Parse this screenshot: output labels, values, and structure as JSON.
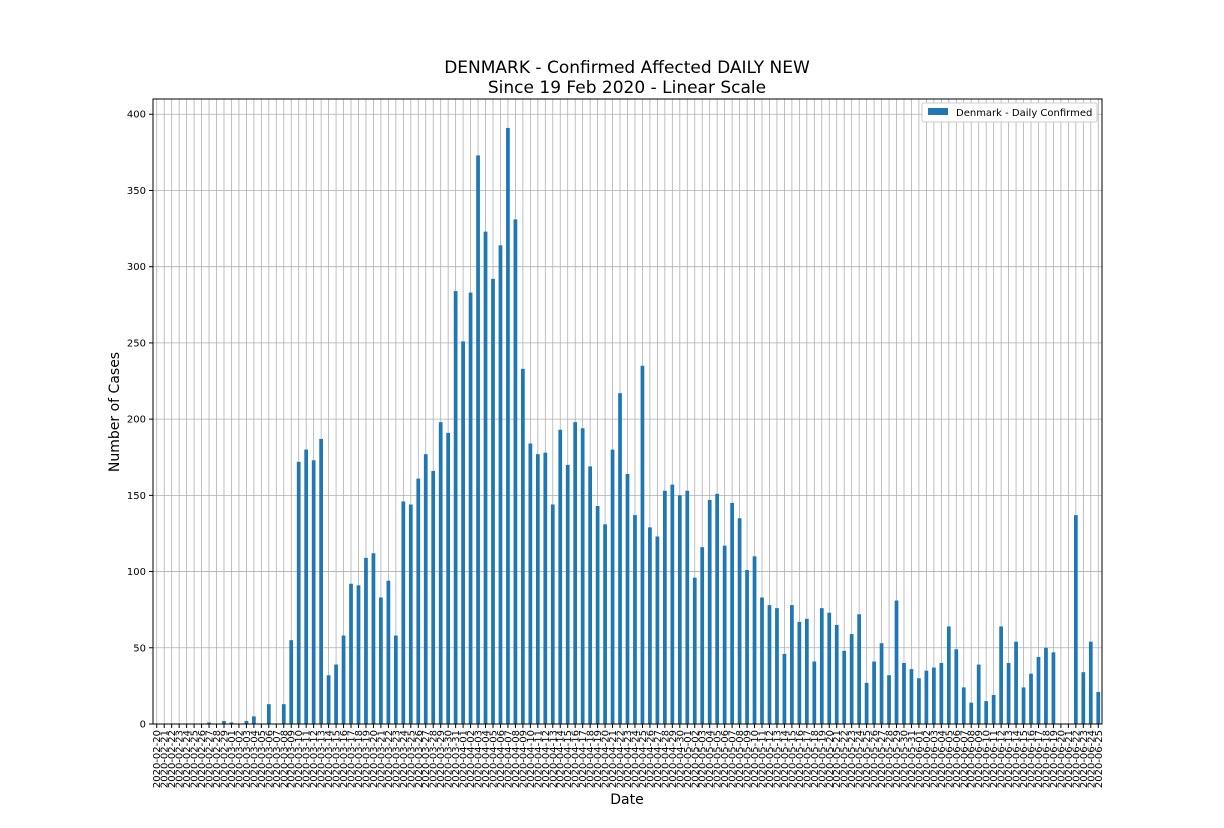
{
  "chart_data": {
    "type": "bar",
    "title": "DENMARK - Confirmed Affected DAILY NEW",
    "subtitle": "Since 19 Feb 2020 - Linear Scale",
    "xlabel": "Date",
    "ylabel": "Number of Cases",
    "ylim": [
      0,
      410
    ],
    "yticks": [
      0,
      50,
      100,
      150,
      200,
      250,
      300,
      350,
      400
    ],
    "grid": true,
    "legend_position": "top-right",
    "bar_color": "#1f77b4",
    "categories": [
      "2020-02-20",
      "2020-02-21",
      "2020-02-22",
      "2020-02-23",
      "2020-02-24",
      "2020-02-25",
      "2020-02-26",
      "2020-02-27",
      "2020-02-28",
      "2020-02-29",
      "2020-03-01",
      "2020-03-02",
      "2020-03-03",
      "2020-03-04",
      "2020-03-05",
      "2020-03-06",
      "2020-03-07",
      "2020-03-08",
      "2020-03-09",
      "2020-03-10",
      "2020-03-11",
      "2020-03-12",
      "2020-03-13",
      "2020-03-14",
      "2020-03-15",
      "2020-03-16",
      "2020-03-17",
      "2020-03-18",
      "2020-03-19",
      "2020-03-20",
      "2020-03-21",
      "2020-03-22",
      "2020-03-23",
      "2020-03-24",
      "2020-03-25",
      "2020-03-26",
      "2020-03-27",
      "2020-03-28",
      "2020-03-29",
      "2020-03-30",
      "2020-03-31",
      "2020-04-01",
      "2020-04-02",
      "2020-04-03",
      "2020-04-04",
      "2020-04-05",
      "2020-04-06",
      "2020-04-07",
      "2020-04-08",
      "2020-04-09",
      "2020-04-10",
      "2020-04-11",
      "2020-04-12",
      "2020-04-13",
      "2020-04-14",
      "2020-04-15",
      "2020-04-16",
      "2020-04-17",
      "2020-04-18",
      "2020-04-19",
      "2020-04-20",
      "2020-04-21",
      "2020-04-22",
      "2020-04-23",
      "2020-04-24",
      "2020-04-25",
      "2020-04-26",
      "2020-04-27",
      "2020-04-28",
      "2020-04-29",
      "2020-04-30",
      "2020-05-01",
      "2020-05-02",
      "2020-05-03",
      "2020-05-04",
      "2020-05-05",
      "2020-05-06",
      "2020-05-07",
      "2020-05-08",
      "2020-05-09",
      "2020-05-10",
      "2020-05-11",
      "2020-05-12",
      "2020-05-13",
      "2020-05-14",
      "2020-05-15",
      "2020-05-16",
      "2020-05-17",
      "2020-05-18",
      "2020-05-19",
      "2020-05-20",
      "2020-05-21",
      "2020-05-22",
      "2020-05-23",
      "2020-05-24",
      "2020-05-25",
      "2020-05-26",
      "2020-05-27",
      "2020-05-28",
      "2020-05-29",
      "2020-05-30",
      "2020-05-31",
      "2020-06-01",
      "2020-06-02",
      "2020-06-03",
      "2020-06-04",
      "2020-06-05",
      "2020-06-06",
      "2020-06-07",
      "2020-06-08",
      "2020-06-09",
      "2020-06-10",
      "2020-06-11",
      "2020-06-12",
      "2020-06-13",
      "2020-06-14",
      "2020-06-15",
      "2020-06-16",
      "2020-06-17",
      "2020-06-18",
      "2020-06-19",
      "2020-06-20",
      "2020-06-21",
      "2020-06-22",
      "2020-06-23",
      "2020-06-24",
      "2020-06-25"
    ],
    "series": [
      {
        "name": "Denmark - Daily Confirmed",
        "values": [
          0,
          0,
          0,
          0,
          0,
          0,
          0,
          1,
          0,
          2,
          1,
          0,
          2,
          5,
          0,
          13,
          0,
          13,
          55,
          172,
          180,
          173,
          187,
          32,
          39,
          58,
          92,
          91,
          109,
          112,
          83,
          94,
          58,
          146,
          144,
          161,
          177,
          166,
          198,
          191,
          284,
          251,
          283,
          373,
          323,
          292,
          314,
          391,
          331,
          233,
          184,
          177,
          178,
          144,
          193,
          170,
          198,
          194,
          169,
          143,
          131,
          180,
          217,
          164,
          137,
          235,
          129,
          123,
          153,
          157,
          150,
          153,
          96,
          116,
          147,
          151,
          117,
          145,
          135,
          101,
          110,
          83,
          78,
          76,
          46,
          78,
          67,
          69,
          41,
          76,
          73,
          65,
          48,
          59,
          72,
          27,
          41,
          53,
          32,
          81,
          40,
          36,
          30,
          35,
          37,
          40,
          64,
          49,
          24,
          14,
          39,
          15,
          19,
          64,
          40,
          54,
          24,
          33,
          44,
          50,
          47,
          0,
          0,
          137,
          34,
          54,
          21
        ]
      }
    ]
  }
}
